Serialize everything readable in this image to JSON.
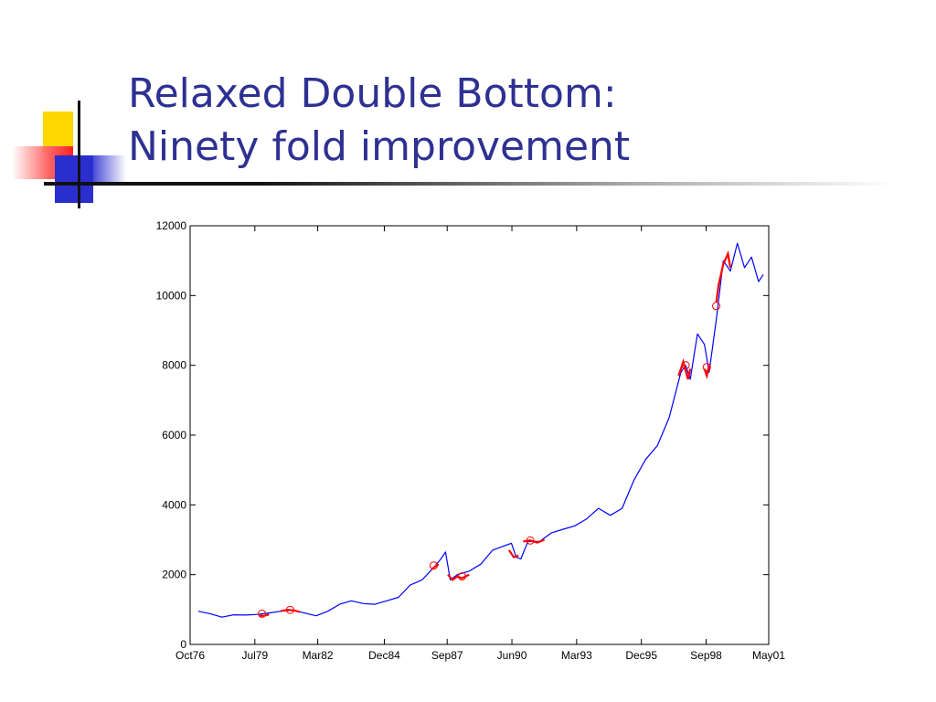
{
  "slide": {
    "title_line1": "Relaxed Double Bottom:",
    "title_line2": "Ninety fold improvement"
  },
  "colors": {
    "title": "#2e3192",
    "series_main": "#0000ff",
    "series_highlight": "#ff0000"
  },
  "chart_data": {
    "type": "line",
    "title": "",
    "xlabel": "",
    "ylabel": "",
    "x_ticks": [
      "Oct76",
      "Jul79",
      "Mar82",
      "Dec84",
      "Sep87",
      "Jun90",
      "Mar93",
      "Dec95",
      "Sep98",
      "May01"
    ],
    "x_tick_years": [
      1976.75,
      1979.5,
      1982.17,
      1985.0,
      1987.67,
      1990.42,
      1993.17,
      1995.92,
      1998.67,
      2001.33
    ],
    "xlim": [
      1976.75,
      2001.33
    ],
    "y_ticks": [
      0,
      2000,
      4000,
      6000,
      8000,
      10000,
      12000
    ],
    "y_tick_labels": [
      "0",
      "2000",
      "4000",
      "6000",
      "8000",
      "10000",
      "12000"
    ],
    "ylim": [
      0,
      12000
    ],
    "grid": false,
    "series": [
      {
        "role": "price",
        "color": "#0000ff",
        "x": [
          1977.1,
          1977.6,
          1978.1,
          1978.6,
          1979.1,
          1979.6,
          1980.1,
          1980.6,
          1981.1,
          1981.6,
          1982.1,
          1982.6,
          1983.1,
          1983.6,
          1984.1,
          1984.6,
          1985.1,
          1985.6,
          1986.1,
          1986.6,
          1987.1,
          1987.4,
          1987.6,
          1987.8,
          1988.1,
          1988.6,
          1989.1,
          1989.6,
          1990.0,
          1990.4,
          1990.6,
          1990.8,
          1991.1,
          1991.6,
          1992.1,
          1992.6,
          1993.1,
          1993.6,
          1994.1,
          1994.6,
          1995.1,
          1995.6,
          1996.1,
          1996.6,
          1997.1,
          1997.6,
          1997.8,
          1998.0,
          1998.3,
          1998.6,
          1998.8,
          1999.1,
          1999.4,
          1999.7,
          2000.0,
          2000.3,
          2000.6,
          2000.9,
          2001.1
        ],
        "y": [
          950,
          880,
          780,
          850,
          840,
          860,
          900,
          950,
          980,
          900,
          820,
          950,
          1150,
          1250,
          1170,
          1150,
          1250,
          1350,
          1700,
          1850,
          2200,
          2450,
          2650,
          1850,
          2000,
          2100,
          2300,
          2700,
          2800,
          2900,
          2500,
          2450,
          2950,
          2950,
          3200,
          3300,
          3400,
          3600,
          3900,
          3700,
          3900,
          4700,
          5300,
          5700,
          6500,
          7800,
          8000,
          7600,
          8900,
          8600,
          7800,
          9300,
          11000,
          10700,
          11500,
          10800,
          11100,
          10400,
          10600
        ]
      }
    ],
    "highlight_segments": [
      {
        "x": [
          1979.7,
          1979.9,
          1980.1
        ],
        "y": [
          830,
          820,
          860
        ]
      },
      {
        "x": [
          1980.6,
          1980.9,
          1981.2,
          1981.4
        ],
        "y": [
          960,
          990,
          970,
          930
        ]
      },
      {
        "x": [
          1987.0,
          1987.1,
          1987.2,
          1987.3
        ],
        "y": [
          2150,
          2200,
          2250,
          2300
        ]
      },
      {
        "x": [
          1987.7,
          1987.9,
          1988.1,
          1988.3,
          1988.6
        ],
        "y": [
          2000,
          1850,
          1950,
          1900,
          2000
        ]
      },
      {
        "x": [
          1990.3,
          1990.5,
          1990.7
        ],
        "y": [
          2700,
          2500,
          2550
        ]
      },
      {
        "x": [
          1990.9,
          1991.2,
          1991.5,
          1991.8
        ],
        "y": [
          2950,
          2980,
          2920,
          3000
        ]
      },
      {
        "x": [
          1997.5,
          1997.7,
          1997.9,
          1998.0
        ],
        "y": [
          7700,
          8100,
          7600,
          7900
        ]
      },
      {
        "x": [
          1998.6,
          1998.7,
          1998.8
        ],
        "y": [
          7900,
          7700,
          8000
        ]
      },
      {
        "x": [
          1999.1,
          1999.2,
          1999.4,
          1999.6,
          1999.7
        ],
        "y": [
          9800,
          10300,
          10900,
          11200,
          10800
        ]
      }
    ],
    "markers": [
      {
        "x": 1979.8,
        "y": 880
      },
      {
        "x": 1981.0,
        "y": 990
      },
      {
        "x": 1987.1,
        "y": 2260
      },
      {
        "x": 1988.3,
        "y": 1950
      },
      {
        "x": 1991.2,
        "y": 2980
      },
      {
        "x": 1997.8,
        "y": 8000
      },
      {
        "x": 1998.7,
        "y": 7950
      },
      {
        "x": 1999.1,
        "y": 9700
      }
    ]
  }
}
